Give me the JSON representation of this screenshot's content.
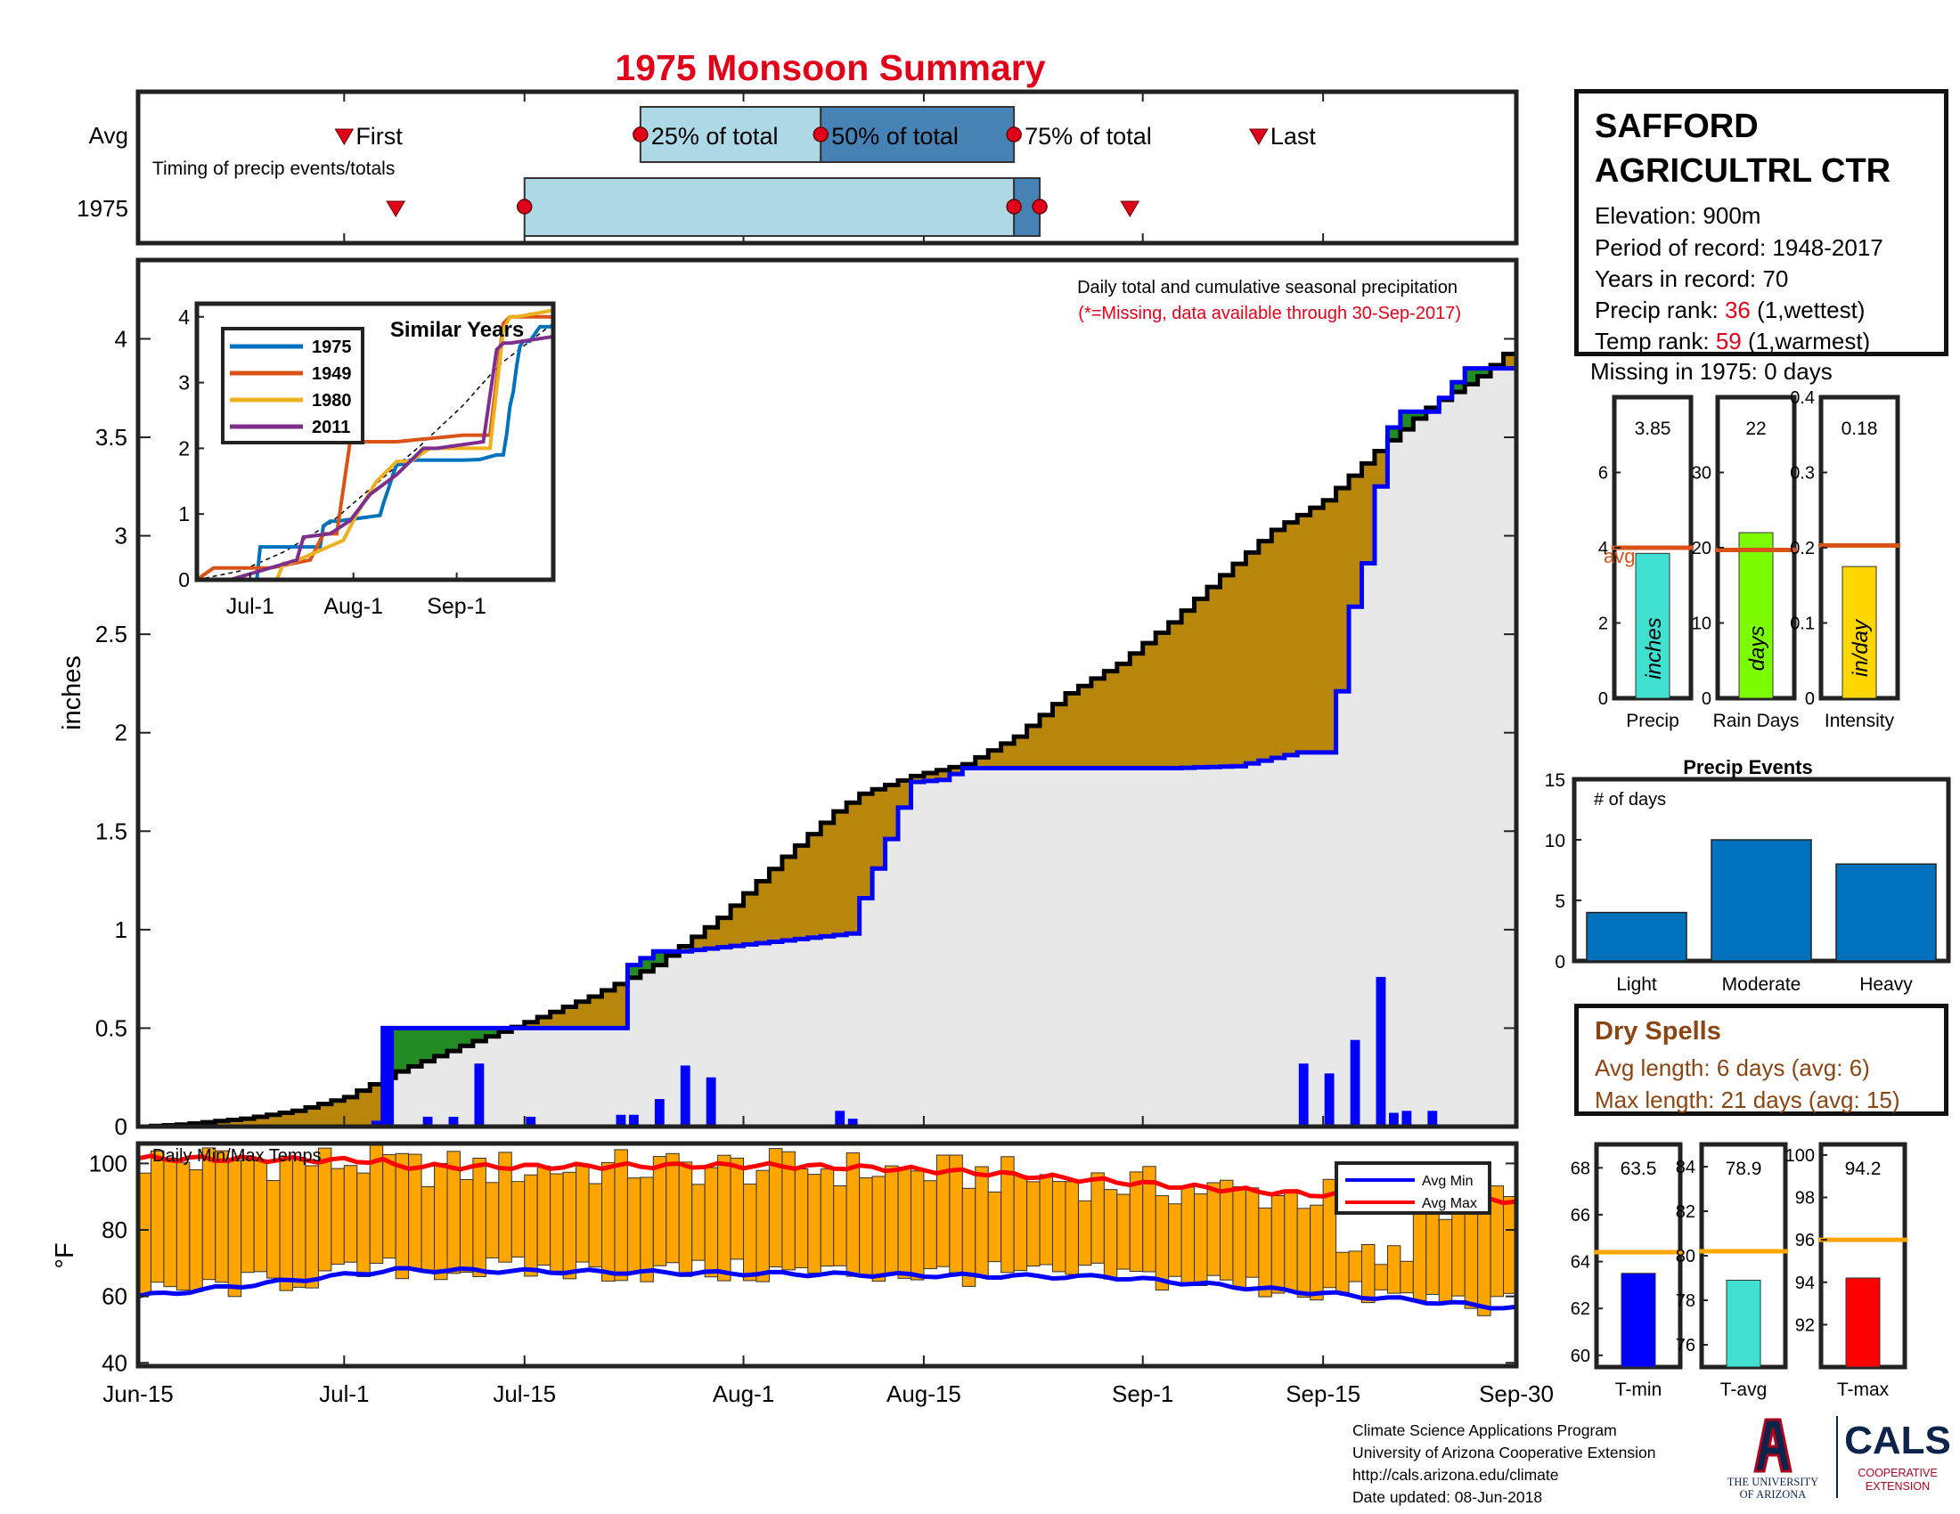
{
  "title": "1975 Monsoon Summary",
  "colors": {
    "title_red": "#e0001a",
    "timing_light": "#add8e6",
    "timing_dark": "#4682b4",
    "above_avg_fill": "#228b22",
    "below_avg_fill": "#b8860b",
    "avg_area_fill": "#e8e8e8",
    "daily_bar": "#0000ff",
    "temp_bar": "#ffa500",
    "avg_max_line": "#ff0000",
    "avg_min_line": "#0000ff",
    "precip_bar": "#40e0d0",
    "raindays_bar": "#7cfc00",
    "intensity_bar": "#ffd700",
    "event_bar": "#0072bd",
    "tmin_bar": "#0000ff",
    "tavg_bar": "#40e0d0",
    "tmax_bar": "#ff0000",
    "avg_line": "#d95319",
    "temp_avg_line": "#ffa500",
    "dry_text": "#8b4513"
  },
  "timing": {
    "row_avg_label": "Avg",
    "row_year_label": "1975",
    "subtitle": "Timing of precip events/totals",
    "first_label": "First",
    "last_label": "Last",
    "p25_label": "25% of total",
    "p50_label": "50% of total",
    "p75_label": "75% of total",
    "avg_days": {
      "first": 16,
      "p25": 39,
      "p50": 53,
      "p75": 68,
      "last": 87
    },
    "year_days": {
      "first": 20,
      "p25": 30,
      "p50": 68,
      "p75": 70,
      "last": 77
    }
  },
  "main": {
    "annotation": "Daily total and cumulative seasonal precipitation",
    "missing_note": "(*=Missing, data available through 30-Sep-2017)",
    "ylabel": "inches",
    "ylim": [
      0,
      4.4
    ],
    "yticks": [
      "0",
      "0.5",
      "1",
      "1.5",
      "2",
      "2.5",
      "3",
      "3.5",
      "4"
    ],
    "xticks": [
      "Jun-15",
      "Jul-1",
      "Jul-15",
      "Aug-1",
      "Aug-15",
      "Sep-1",
      "Sep-15",
      "Sep-30"
    ]
  },
  "inset": {
    "title": "Similar Years",
    "legend": [
      "1975",
      "1949",
      "1980",
      "2011"
    ],
    "line_colors": [
      "#0072bd",
      "#d95319",
      "#edb120",
      "#7e2f8e"
    ],
    "yticks": [
      "0",
      "1",
      "2",
      "3",
      "4"
    ],
    "xticks": [
      "Jul-1",
      "Aug-1",
      "Sep-1"
    ]
  },
  "temps": {
    "title": "Daily Min/Max Temps",
    "ylabel": "°F",
    "yticks": [
      "40",
      "60",
      "80",
      "100"
    ],
    "legend_min": "Avg Min",
    "legend_max": "Avg Max"
  },
  "station": {
    "name_line1": "SAFFORD",
    "name_line2": "AGRICULTRL CTR",
    "elevation": "Elevation: 900m",
    "period": "Period of record: 1948-2017",
    "years": "Years in record: 70",
    "precip_rank_label": "Precip rank: ",
    "precip_rank_value": "36",
    "precip_rank_note": " (1,wettest)",
    "temp_rank_label": "Temp rank: ",
    "temp_rank_value": "59",
    "temp_rank_note": " (1,warmest)",
    "missing": "Missing in 1975: 0 days"
  },
  "summary_bars": [
    {
      "value_label": "3.85",
      "value": 3.85,
      "avg": 4.0,
      "ymax": 8,
      "yticks": [
        "0",
        "2",
        "4",
        "6"
      ],
      "bar_text": "inches",
      "xlabel": "Precip",
      "avg_note": "avg"
    },
    {
      "value_label": "22",
      "value": 22,
      "avg": 19.7,
      "ymax": 40,
      "yticks": [
        "0",
        "10",
        "20",
        "30"
      ],
      "bar_text": "days",
      "xlabel": "Rain Days"
    },
    {
      "value_label": "0.18",
      "value": 0.175,
      "avg": 0.203,
      "ymax": 0.4,
      "yticks": [
        "0",
        "0.1",
        "0.2",
        "0.3",
        "0.4"
      ],
      "bar_text": "in/day",
      "xlabel": "Intensity"
    }
  ],
  "events": {
    "title": "Precip Events",
    "ylabel": "# of days",
    "ylim": [
      0,
      15
    ],
    "yticks": [
      "0",
      "5",
      "10",
      "15"
    ],
    "categories": [
      "Light",
      "Moderate",
      "Heavy"
    ],
    "values": [
      4,
      10,
      8
    ]
  },
  "dry_spells": {
    "title": "Dry Spells",
    "avg_length": "Avg length: 6 days (avg: 6)",
    "max_length": "Max length: 21 days (avg: 15)"
  },
  "temp_bars": [
    {
      "value_label": "63.5",
      "value": 63.5,
      "avg": 64.4,
      "ymin": 59.5,
      "ymax": 69,
      "yticks": [
        "60",
        "62",
        "64",
        "66",
        "68"
      ],
      "xlabel": "T-min"
    },
    {
      "value_label": "78.9",
      "value": 78.9,
      "avg": 80.2,
      "ymin": 75,
      "ymax": 85,
      "yticks": [
        "76",
        "78",
        "80",
        "82",
        "84"
      ],
      "xlabel": "T-avg"
    },
    {
      "value_label": "94.2",
      "value": 94.2,
      "avg": 96,
      "ymin": 90,
      "ymax": 100.5,
      "yticks": [
        "92",
        "94",
        "96",
        "98",
        "100"
      ],
      "xlabel": "T-max"
    }
  ],
  "credits": {
    "line1": "Climate Science Applications Program",
    "line2": "University of Arizona Cooperative Extension",
    "line3": "http://cals.arizona.edu/climate",
    "line4": " Date updated: 08-Jun-2018"
  },
  "logos": {
    "ua_line1": "THE UNIVERSITY",
    "ua_line2": "OF ARIZONA",
    "cals": "CALS",
    "cals_sub1": "COOPERATIVE",
    "cals_sub2": "EXTENSION"
  },
  "chart_data": [
    {
      "type": "area",
      "title": "Daily total and cumulative seasonal precipitation",
      "ylabel": "inches",
      "x_unit": "day of season (Jun-15 = 0, Sep-30 = 107)",
      "ylim": [
        0,
        4.4
      ],
      "series": [
        {
          "name": "1975",
          "x": [
            0,
            18,
            19,
            37,
            38,
            40,
            42,
            55,
            56,
            58,
            59,
            60,
            62,
            64,
            75,
            80,
            85,
            90,
            91,
            92,
            93,
            94,
            95,
            96,
            97,
            98,
            100,
            101,
            102,
            103,
            107
          ],
          "y": [
            0,
            0,
            0.5,
            0.5,
            0.82,
            0.89,
            0.89,
            0.98,
            1.16,
            1.46,
            1.62,
            1.75,
            1.76,
            1.82,
            1.82,
            1.82,
            1.83,
            1.9,
            1.9,
            1.9,
            2.21,
            2.64,
            2.86,
            3.25,
            3.55,
            3.63,
            3.63,
            3.7,
            3.78,
            3.85,
            3.85
          ]
        },
        {
          "name": "Avg",
          "x": [
            0,
            3,
            8,
            12,
            16,
            20,
            25,
            30,
            35,
            40,
            45,
            50,
            54,
            56,
            60,
            64,
            68,
            72,
            76,
            80,
            84,
            88,
            92,
            96,
            100,
            104,
            107
          ],
          "y": [
            0,
            0.01,
            0.04,
            0.08,
            0.15,
            0.28,
            0.41,
            0.53,
            0.66,
            0.82,
            1.06,
            1.37,
            1.6,
            1.69,
            1.78,
            1.84,
            1.98,
            2.2,
            2.35,
            2.56,
            2.8,
            3.03,
            3.18,
            3.43,
            3.65,
            3.81,
            3.98
          ]
        }
      ],
      "daily": {
        "x": [
          18,
          19,
          22,
          24,
          26,
          30,
          37,
          38,
          40,
          42,
          44,
          54,
          55,
          56,
          58,
          63,
          66,
          67,
          70,
          73,
          75,
          77,
          79,
          80,
          85,
          88,
          90,
          92,
          94,
          96,
          97,
          98,
          100
        ],
        "y": [
          0.03,
          0.5,
          0.05,
          0.05,
          0.32,
          0.05,
          0.06,
          0.06,
          0.14,
          0.31,
          0.25,
          0.08,
          0.04,
          0.01,
          0.01,
          0.01,
          0.01,
          0.01,
          0.01,
          0.01,
          0.01,
          0.01,
          0.01,
          0.01,
          0.01,
          0.01,
          0.32,
          0.27,
          0.44,
          0.76,
          0.07,
          0.08,
          0.08
        ]
      }
    },
    {
      "type": "bar",
      "title": "Daily Min/Max Temps",
      "ylabel": "°F",
      "ylim": [
        40,
        105
      ]
    }
  ]
}
